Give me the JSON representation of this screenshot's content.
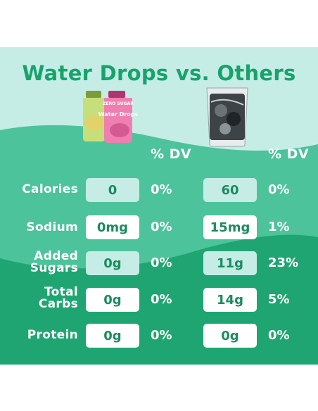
{
  "title": "Water Drops vs. Others",
  "columns": {
    "product_a": "Water Drops bottles",
    "product_b": "Other drink pouch",
    "dv_header_a": "% DV",
    "dv_header_b": "% DV"
  },
  "rows": [
    {
      "label": "Calories",
      "wd_value": "0",
      "wd_dv": "0%",
      "other_value": "60",
      "other_dv": "0%"
    },
    {
      "label": "Sodium",
      "wd_value": "0mg",
      "wd_dv": "0%",
      "other_value": "15mg",
      "other_dv": "1%"
    },
    {
      "label_line1": "Added",
      "label_line2": "Sugars",
      "wd_value": "0g",
      "wd_dv": "0%",
      "other_value": "11g",
      "other_dv": "23%"
    },
    {
      "label_line1": "Total",
      "label_line2": "Carbs",
      "wd_value": "0g",
      "wd_dv": "0%",
      "other_value": "14g",
      "other_dv": "5%"
    },
    {
      "label": "Protein",
      "wd_value": "0g",
      "wd_dv": "0%",
      "other_value": "0g",
      "other_dv": "0%"
    }
  ],
  "bottle_labels": {
    "bottle_brand": "Water Drops",
    "bottle_tag": "ZERO SUGAR"
  },
  "colors": {
    "mint": "#c6ece6",
    "wave_mid": "#4cc39a",
    "wave_dark": "#1fa572",
    "title_green": "#17a36b"
  }
}
